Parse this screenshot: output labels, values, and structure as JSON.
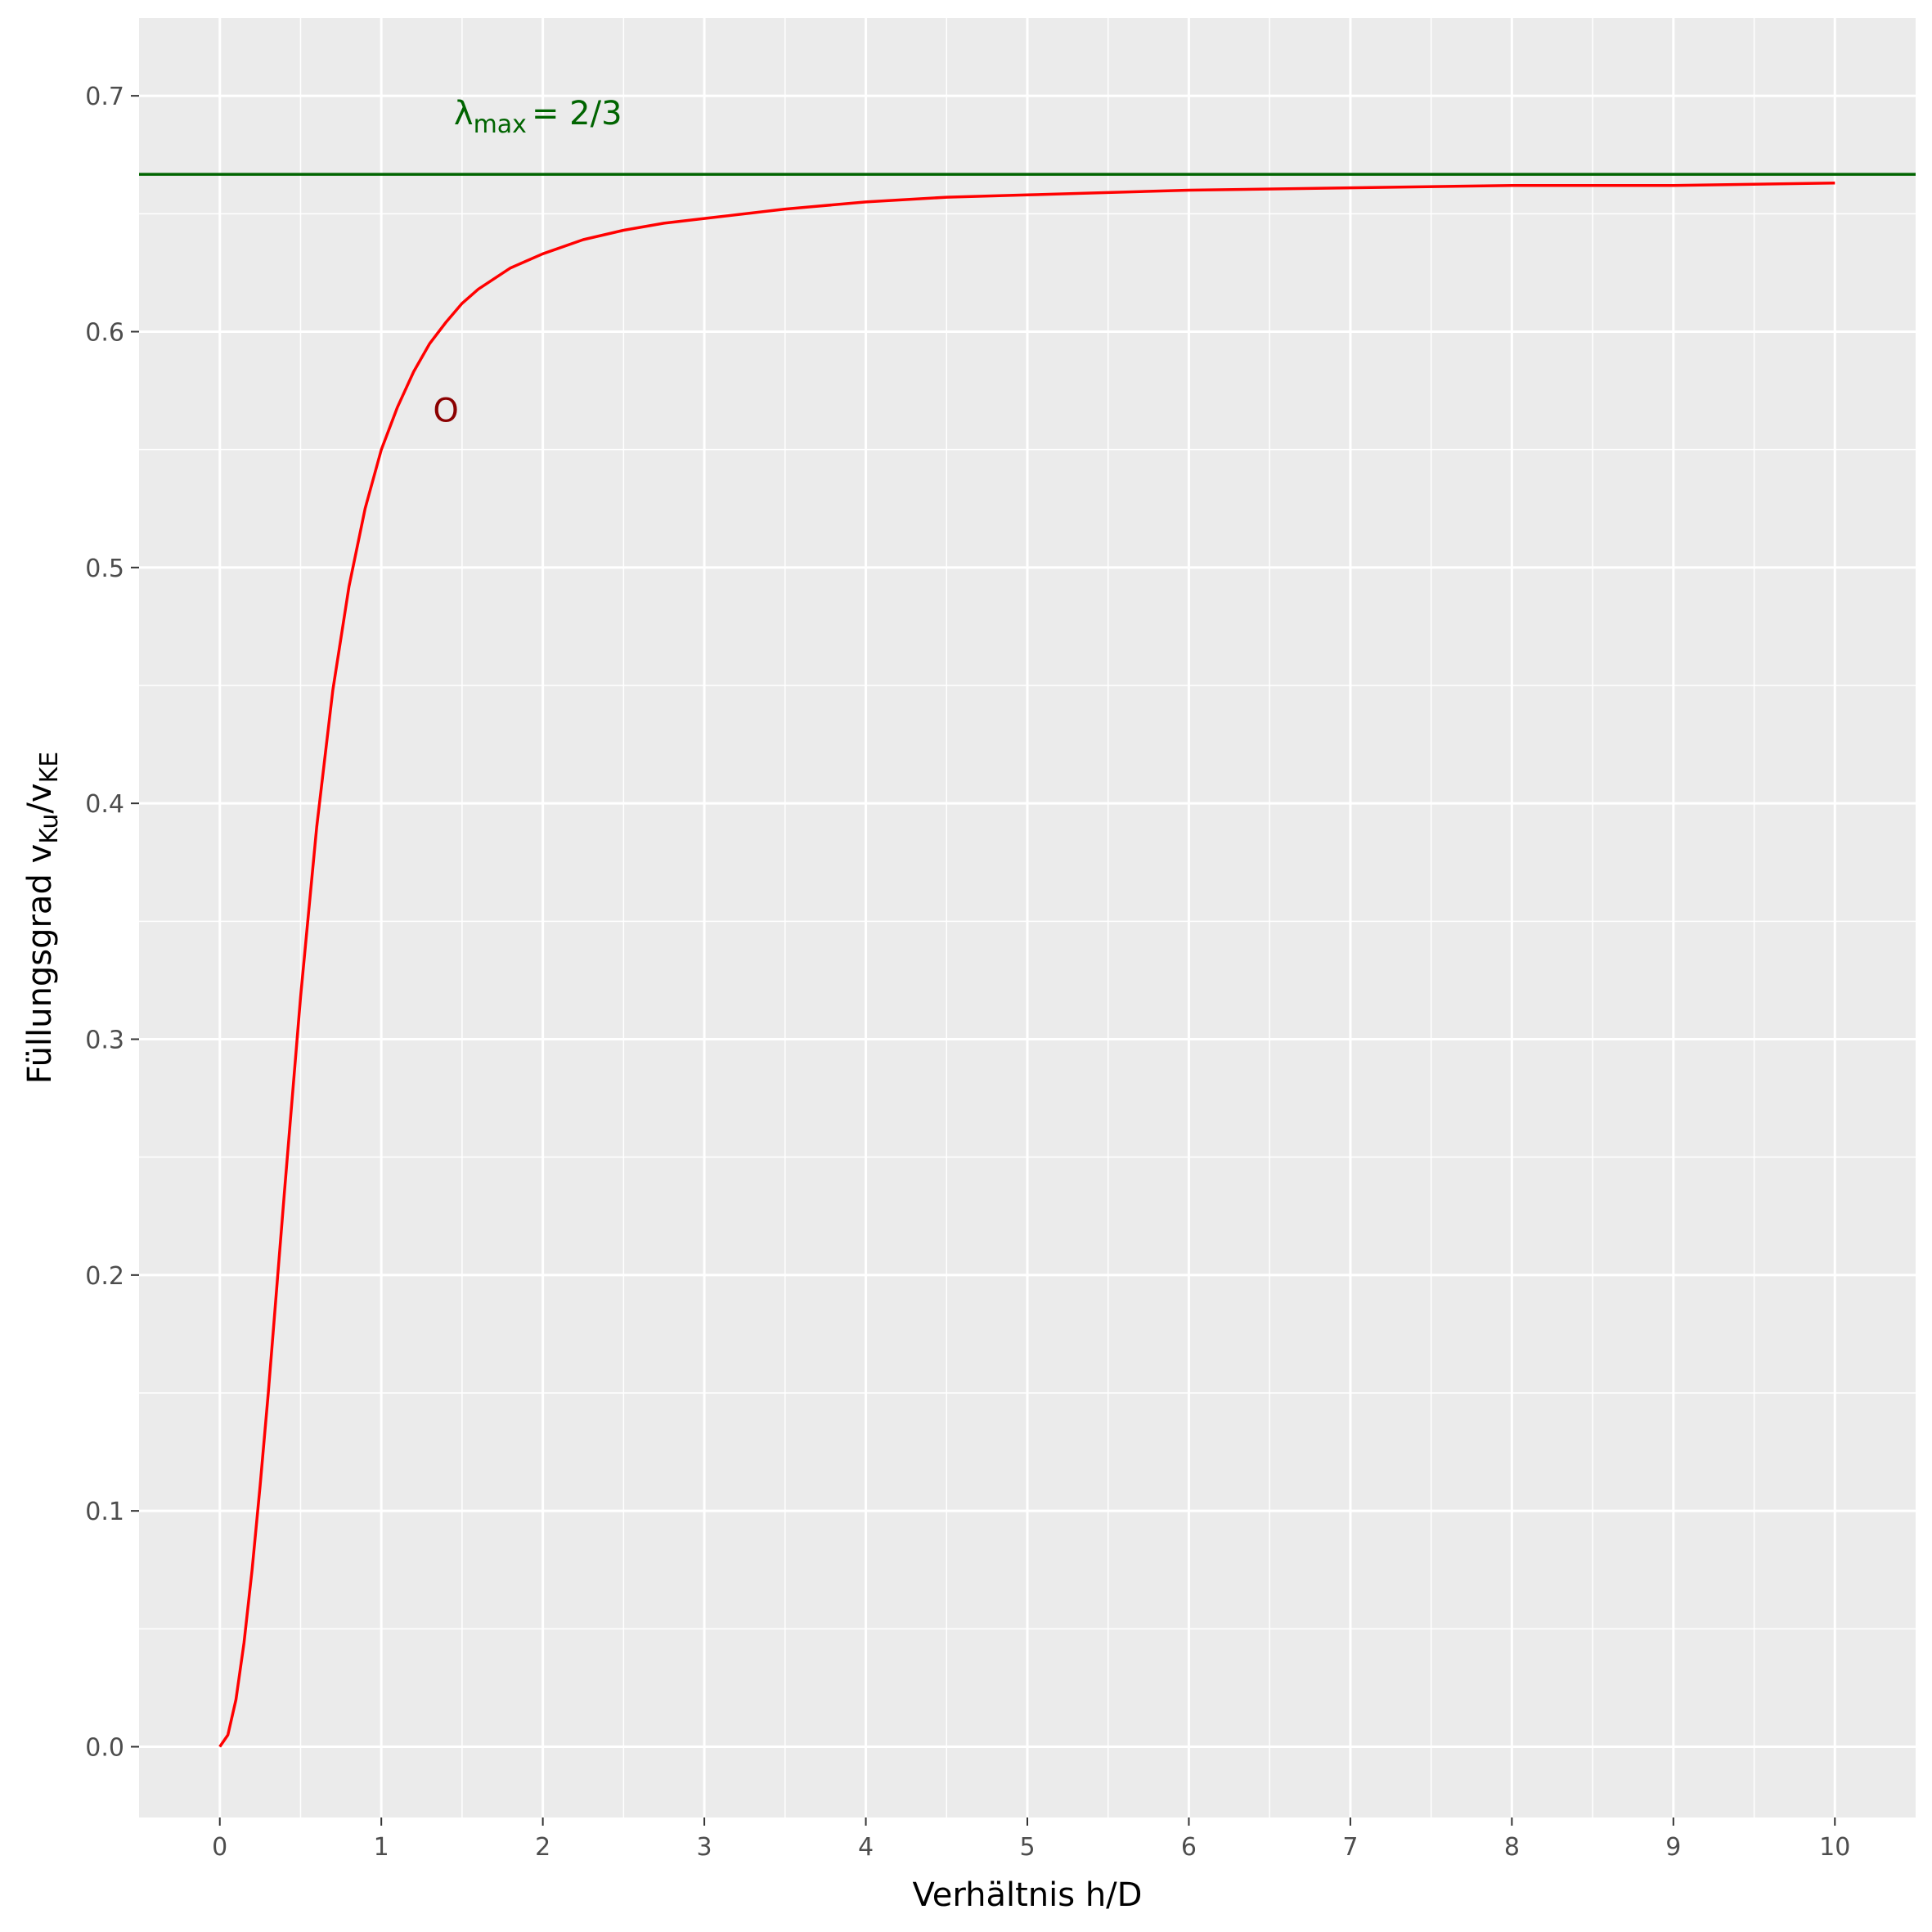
{
  "chart_data": {
    "type": "line",
    "title": "",
    "xlabel": "Verhältnis h/D",
    "ylabel": {
      "main": "Füllungsgrad v",
      "sub1": "Ku",
      "slash": "/v",
      "sub2": "KE"
    },
    "xlim": [
      -0.5,
      10.5
    ],
    "ylim": [
      -0.03,
      0.733
    ],
    "x_ticks": [
      0,
      1,
      2,
      3,
      4,
      5,
      6,
      7,
      8,
      9,
      10
    ],
    "x_tick_labels": [
      "0",
      "1",
      "2",
      "3",
      "4",
      "5",
      "6",
      "7",
      "8",
      "9",
      "10"
    ],
    "y_ticks": [
      0.0,
      0.1,
      0.2,
      0.3,
      0.4,
      0.5,
      0.6,
      0.7
    ],
    "y_tick_labels": [
      "0.0",
      "0.1",
      "0.2",
      "0.3",
      "0.4",
      "0.5",
      "0.6",
      "0.7"
    ],
    "grid": true,
    "background": "#ebebeb",
    "series": [
      {
        "color": "#ff0000",
        "x": [
          0,
          0.05,
          0.1,
          0.15,
          0.2,
          0.25,
          0.3,
          0.4,
          0.5,
          0.6,
          0.7,
          0.8,
          0.9,
          1.0,
          1.1,
          1.2,
          1.3,
          1.4,
          1.5,
          1.6,
          1.8,
          2.0,
          2.25,
          2.5,
          2.75,
          3.0,
          3.5,
          4.0,
          4.5,
          5.0,
          5.5,
          6.0,
          7.0,
          8.0,
          9.0,
          10.0
        ],
        "y": [
          0.0,
          0.005,
          0.02,
          0.044,
          0.075,
          0.111,
          0.15,
          0.235,
          0.318,
          0.39,
          0.448,
          0.492,
          0.525,
          0.55,
          0.568,
          0.583,
          0.595,
          0.604,
          0.612,
          0.618,
          0.627,
          0.633,
          0.639,
          0.643,
          0.646,
          0.648,
          0.652,
          0.655,
          0.657,
          0.658,
          0.659,
          0.66,
          0.661,
          0.662,
          0.662,
          0.663
        ]
      }
    ],
    "hline": {
      "y": 0.6667,
      "color": "#006400"
    },
    "annotations": [
      {
        "text_main": "λ",
        "text_sub": "max",
        "text_rest": "= 2/3",
        "x": 1.5,
        "y": 0.688,
        "color": "#006400"
      },
      {
        "text_main": "O",
        "x": 1.4,
        "y": 0.567,
        "color": "#8b0000"
      }
    ]
  }
}
